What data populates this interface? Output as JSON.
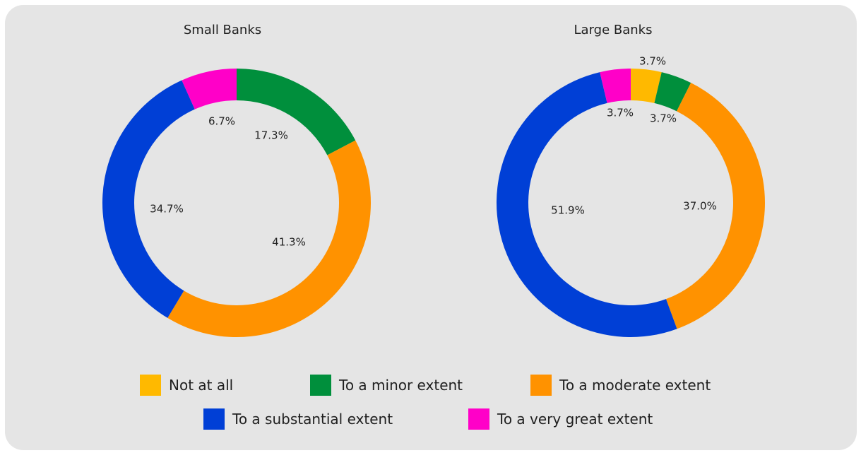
{
  "chart_data": {
    "type": "pie",
    "legend": [
      {
        "label": "Not at all",
        "color": "#FFB900"
      },
      {
        "label": "To a minor extent",
        "color": "#008F3C"
      },
      {
        "label": "To a moderate extent",
        "color": "#FF9200"
      },
      {
        "label": "To a substantial extent",
        "color": "#003FD6"
      },
      {
        "label": "To a very great extent",
        "color": "#FF00C8"
      }
    ],
    "charts": [
      {
        "title": "Small Banks",
        "slices": [
          {
            "category": "To a minor extent",
            "value": 17.3,
            "label": "17.3%",
            "color": "#008F3C"
          },
          {
            "category": "To a moderate extent",
            "value": 41.3,
            "label": "41.3%",
            "color": "#FF9200"
          },
          {
            "category": "To a substantial extent",
            "value": 34.7,
            "label": "34.7%",
            "color": "#003FD6"
          },
          {
            "category": "To a very great extent",
            "value": 6.7,
            "label": "6.7%",
            "color": "#FF00C8"
          }
        ]
      },
      {
        "title": "Large Banks",
        "slices": [
          {
            "category": "Not at all",
            "value": 3.7,
            "label": "3.7%",
            "color": "#FFB900"
          },
          {
            "category": "To a minor extent",
            "value": 3.7,
            "label": "3.7%",
            "color": "#008F3C"
          },
          {
            "category": "To a moderate extent",
            "value": 37.0,
            "label": "37.0%",
            "color": "#FF9200"
          },
          {
            "category": "To a substantial extent",
            "value": 51.9,
            "label": "51.9%",
            "color": "#003FD6"
          },
          {
            "category": "To a very great extent",
            "value": 3.7,
            "label": "3.7%",
            "color": "#FF00C8"
          }
        ]
      }
    ]
  }
}
